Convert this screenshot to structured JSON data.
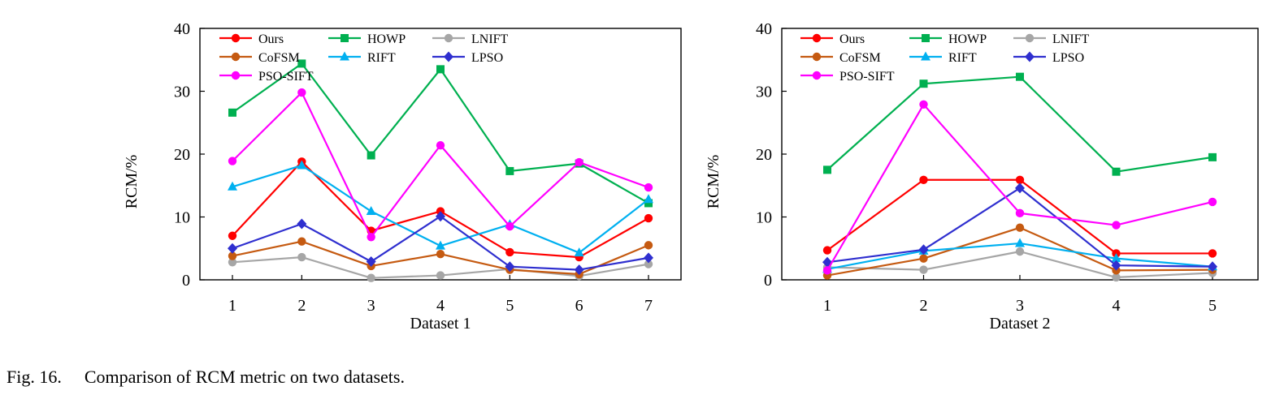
{
  "caption": {
    "label": "Fig. 16.",
    "text": "Comparison of RCM metric on two datasets."
  },
  "chart_data": [
    {
      "type": "line",
      "xlabel": "Dataset 1",
      "ylabel": "RCM/%",
      "ylim": [
        0,
        40
      ],
      "yticks": [
        0,
        10,
        20,
        30,
        40
      ],
      "x": [
        1,
        2,
        3,
        4,
        5,
        6,
        7
      ],
      "grid": false,
      "legend_position": "top-left",
      "series": [
        {
          "name": "Ours",
          "color": "#ff0000",
          "marker": "circle",
          "values": [
            7,
            18.8,
            7.8,
            10.9,
            4.4,
            3.6,
            9.8
          ]
        },
        {
          "name": "HOWP",
          "color": "#00b050",
          "marker": "square",
          "values": [
            26.6,
            34.4,
            19.8,
            33.5,
            17.3,
            18.5,
            12.2
          ]
        },
        {
          "name": "LNIFT",
          "color": "#a6a6a6",
          "marker": "circle",
          "values": [
            2.8,
            3.6,
            0.3,
            0.7,
            1.7,
            0.6,
            2.5
          ]
        },
        {
          "name": "CoFSM",
          "color": "#c55a11",
          "marker": "circle",
          "values": [
            3.8,
            6.1,
            2.2,
            4.1,
            1.6,
            0.9,
            5.5
          ]
        },
        {
          "name": "RIFT",
          "color": "#00b0f0",
          "marker": "triangle",
          "values": [
            14.8,
            18.2,
            10.9,
            5.4,
            8.8,
            4.3,
            12.8
          ]
        },
        {
          "name": "LPSO",
          "color": "#2f2fcf",
          "marker": "diamond",
          "values": [
            5.0,
            8.9,
            2.9,
            10.1,
            2.1,
            1.6,
            3.5
          ]
        },
        {
          "name": "PSO-SIFT",
          "color": "#ff00ff",
          "marker": "circle",
          "values": [
            18.9,
            29.8,
            6.8,
            21.4,
            8.5,
            18.7,
            14.7
          ]
        }
      ]
    },
    {
      "type": "line",
      "xlabel": "Dataset 2",
      "ylabel": "RCM/%",
      "ylim": [
        0,
        40
      ],
      "yticks": [
        0,
        10,
        20,
        30,
        40
      ],
      "x": [
        1,
        2,
        3,
        4,
        5
      ],
      "grid": false,
      "legend_position": "top-left",
      "series": [
        {
          "name": "Ours",
          "color": "#ff0000",
          "marker": "circle",
          "values": [
            4.7,
            15.9,
            15.9,
            4.2,
            4.2
          ]
        },
        {
          "name": "HOWP",
          "color": "#00b050",
          "marker": "square",
          "values": [
            17.5,
            31.2,
            32.3,
            17.2,
            19.5
          ]
        },
        {
          "name": "LNIFT",
          "color": "#a6a6a6",
          "marker": "circle",
          "values": [
            2.0,
            1.6,
            4.5,
            0.4,
            1.1
          ]
        },
        {
          "name": "CoFSM",
          "color": "#c55a11",
          "marker": "circle",
          "values": [
            0.7,
            3.4,
            8.3,
            1.5,
            1.6
          ]
        },
        {
          "name": "RIFT",
          "color": "#00b0f0",
          "marker": "triangle",
          "values": [
            1.7,
            4.6,
            5.8,
            3.4,
            2.1
          ]
        },
        {
          "name": "LPSO",
          "color": "#2f2fcf",
          "marker": "diamond",
          "values": [
            2.8,
            4.8,
            14.6,
            2.3,
            2.1
          ]
        },
        {
          "name": "PSO-SIFT",
          "color": "#ff00ff",
          "marker": "circle",
          "values": [
            1.5,
            27.9,
            10.6,
            8.7,
            12.4
          ]
        }
      ]
    }
  ]
}
